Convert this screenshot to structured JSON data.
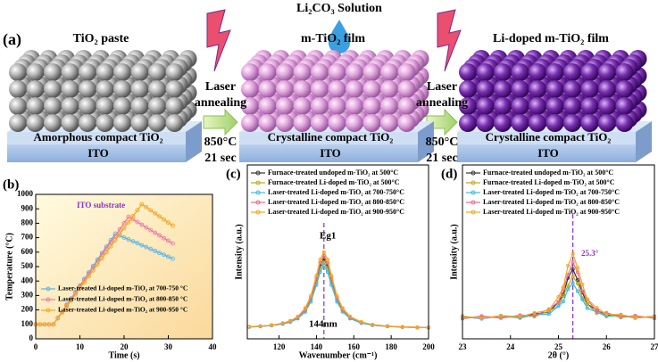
{
  "schematic": {
    "panel_label": "(a)",
    "solution": "Li₂CO₃ Solution",
    "stages": [
      {
        "title": "TiO₂ paste",
        "layer": "Amorphous compact TiO₂",
        "substrate": "ITO"
      },
      {
        "title": "m-TiO₂ film",
        "layer": "Crystalline compact TiO₂",
        "substrate": "ITO"
      },
      {
        "title": "Li-doped m-TiO₂ film",
        "layer": "Crystalline compact TiO₂",
        "substrate": "ITO"
      }
    ],
    "steps": [
      {
        "process": [
          "Laser",
          "annealing"
        ],
        "temperature": "850°C",
        "duration": "21 sec"
      },
      {
        "process": [
          "Laser",
          "annealing"
        ],
        "temperature": "850°C",
        "duration": "21 sec"
      }
    ]
  },
  "chart_data": [
    {
      "type": "line",
      "panel_label": "(b)",
      "xlabel": "Time (s)",
      "ylabel": "Temperature (°C)",
      "xlim": [
        0,
        40
      ],
      "ylim": [
        0,
        1000
      ],
      "xticks": [
        0,
        10,
        20,
        30,
        40
      ],
      "yticks": [
        0,
        100,
        200,
        300,
        400,
        500,
        600,
        700,
        800,
        900,
        1000
      ],
      "annotations": [
        "ITO substrate"
      ],
      "x": [
        0,
        1,
        2,
        3,
        4,
        5,
        6,
        7,
        8,
        9,
        10,
        11,
        12,
        13,
        14,
        15,
        16,
        17,
        18,
        19,
        20,
        21,
        22,
        23,
        24,
        25,
        26,
        27,
        28,
        29,
        30,
        31
      ],
      "series": [
        {
          "name": "Laser-treated Li-doped m-TiO₂ at 700-750 °C",
          "color": "#5ab4e6",
          "values": [
            100,
            100,
            100,
            100,
            100,
            145,
            190,
            235,
            279,
            324,
            369,
            414,
            459,
            504,
            549,
            594,
            638,
            683,
            728,
            715,
            701,
            688,
            675,
            662,
            648,
            635,
            622,
            608,
            595,
            582,
            568,
            555
          ]
        },
        {
          "name": "Laser-treated Li-doped m-TiO₂ at 800-850 °C",
          "color": "#f07aa0",
          "values": [
            100,
            100,
            100,
            100,
            100,
            144,
            188,
            231,
            275,
            319,
            363,
            407,
            450,
            494,
            538,
            582,
            626,
            669,
            713,
            757,
            801,
            845,
            827,
            808,
            790,
            771,
            753,
            734,
            716,
            697,
            679,
            660
          ]
        },
        {
          "name": "Laser-treated Li-doped m-TiO₂ at 900-950 °C",
          "color": "#f5a623",
          "values": [
            100,
            100,
            100,
            100,
            100,
            142,
            183,
            225,
            266,
            308,
            350,
            391,
            433,
            474,
            516,
            558,
            599,
            641,
            682,
            724,
            766,
            807,
            849,
            890,
            932,
            911,
            890,
            869,
            847,
            826,
            805,
            784
          ]
        }
      ]
    },
    {
      "type": "line",
      "panel_label": "(c)",
      "xlabel": "Wavenumber (cm⁻¹)",
      "ylabel": "Intensity (a.u.)",
      "xlim": [
        103,
        200
      ],
      "ylim": [
        0,
        1
      ],
      "xticks": [
        120,
        140,
        160,
        180,
        200
      ],
      "annotations": [
        "Eg1",
        "144nm"
      ],
      "vline": 144,
      "x": [
        104,
        110,
        116,
        122,
        126,
        130,
        134,
        137,
        140,
        142,
        144,
        146,
        148,
        151,
        154,
        158,
        164,
        170,
        178,
        186,
        194,
        200
      ],
      "series": [
        {
          "name": "Furnace-treated undoped m-TiO₂ at 500°C",
          "color": "#333333",
          "values": [
            0.069,
            0.072,
            0.078,
            0.088,
            0.1,
            0.122,
            0.166,
            0.23,
            0.337,
            0.42,
            0.46,
            0.42,
            0.337,
            0.23,
            0.166,
            0.122,
            0.093,
            0.08,
            0.072,
            0.068,
            0.066,
            0.064
          ]
        },
        {
          "name": "Furnace-treated Li-doped m-TiO₂ at 500°C",
          "color": "#b8ac1c",
          "values": [
            0.068,
            0.071,
            0.077,
            0.086,
            0.098,
            0.119,
            0.161,
            0.221,
            0.323,
            0.402,
            0.44,
            0.402,
            0.323,
            0.221,
            0.161,
            0.119,
            0.092,
            0.079,
            0.071,
            0.068,
            0.065,
            0.064
          ]
        },
        {
          "name": "Laser-treated Li-doped m-TiO₂ at 700-750°C",
          "color": "#3fb8e8",
          "values": [
            0.068,
            0.071,
            0.076,
            0.085,
            0.096,
            0.116,
            0.155,
            0.213,
            0.309,
            0.384,
            0.42,
            0.384,
            0.309,
            0.213,
            0.155,
            0.116,
            0.09,
            0.078,
            0.071,
            0.067,
            0.065,
            0.064
          ]
        },
        {
          "name": "Laser-treated Li-doped m-TiO₂ at 800-850°C",
          "color": "#f06a8a",
          "values": [
            0.069,
            0.073,
            0.078,
            0.089,
            0.102,
            0.125,
            0.171,
            0.238,
            0.351,
            0.438,
            0.48,
            0.438,
            0.351,
            0.238,
            0.171,
            0.125,
            0.095,
            0.081,
            0.073,
            0.068,
            0.066,
            0.065
          ]
        },
        {
          "name": "Laser-treated Li-doped m-TiO₂ at 900-950°C",
          "color": "#f5a623",
          "values": [
            0.07,
            0.073,
            0.079,
            0.09,
            0.104,
            0.128,
            0.177,
            0.247,
            0.364,
            0.456,
            0.5,
            0.456,
            0.364,
            0.247,
            0.177,
            0.128,
            0.097,
            0.082,
            0.073,
            0.069,
            0.066,
            0.065
          ]
        }
      ]
    },
    {
      "type": "line",
      "panel_label": "(d)",
      "xlabel": "2θ (°)",
      "ylabel": "Intensity (a.u.)",
      "xlim": [
        23,
        27
      ],
      "ylim": [
        0,
        1
      ],
      "xticks": [
        23,
        24,
        25,
        26,
        27
      ],
      "annotations": [
        "25.3°"
      ],
      "vline": 25.3,
      "x": [
        23,
        23.4,
        23.8,
        24.2,
        24.5,
        24.8,
        25,
        25.1,
        25.2,
        25.3,
        25.4,
        25.5,
        25.6,
        25.8,
        26,
        26.3,
        26.6,
        27
      ],
      "series": [
        {
          "name": "Furnace-treated undoped m-TiO₂ at 500°C",
          "color": "#333333",
          "values": [
            0.127,
            0.116,
            0.131,
            0.123,
            0.143,
            0.153,
            0.212,
            0.254,
            0.35,
            0.4,
            0.338,
            0.266,
            0.2,
            0.165,
            0.135,
            0.137,
            0.121,
            0.129
          ]
        },
        {
          "name": "Furnace-treated Li-doped m-TiO₂ at 500°C",
          "color": "#b8ac1c",
          "values": [
            0.116,
            0.129,
            0.119,
            0.134,
            0.128,
            0.159,
            0.188,
            0.246,
            0.306,
            0.36,
            0.318,
            0.234,
            0.2,
            0.147,
            0.144,
            0.123,
            0.131,
            0.118
          ]
        },
        {
          "name": "Laser-treated Li-doped m-TiO₂ at 700-750°C",
          "color": "#3fb8e8",
          "values": [
            0.128,
            0.115,
            0.13,
            0.12,
            0.138,
            0.142,
            0.188,
            0.214,
            0.286,
            0.32,
            0.274,
            0.226,
            0.176,
            0.154,
            0.129,
            0.134,
            0.119,
            0.128
          ]
        },
        {
          "name": "Laser-treated Li-doped m-TiO₂ at 800-850°C",
          "color": "#f06a8a",
          "values": [
            0.117,
            0.131,
            0.12,
            0.136,
            0.133,
            0.17,
            0.212,
            0.287,
            0.369,
            0.44,
            0.382,
            0.274,
            0.225,
            0.158,
            0.15,
            0.126,
            0.133,
            0.119
          ]
        },
        {
          "name": "Laser-treated Li-doped m-TiO₂ at 900-950°C",
          "color": "#f5a623",
          "values": [
            0.131,
            0.118,
            0.134,
            0.127,
            0.149,
            0.165,
            0.241,
            0.298,
            0.421,
            0.49,
            0.409,
            0.312,
            0.228,
            0.178,
            0.141,
            0.139,
            0.122,
            0.128
          ]
        }
      ]
    }
  ]
}
